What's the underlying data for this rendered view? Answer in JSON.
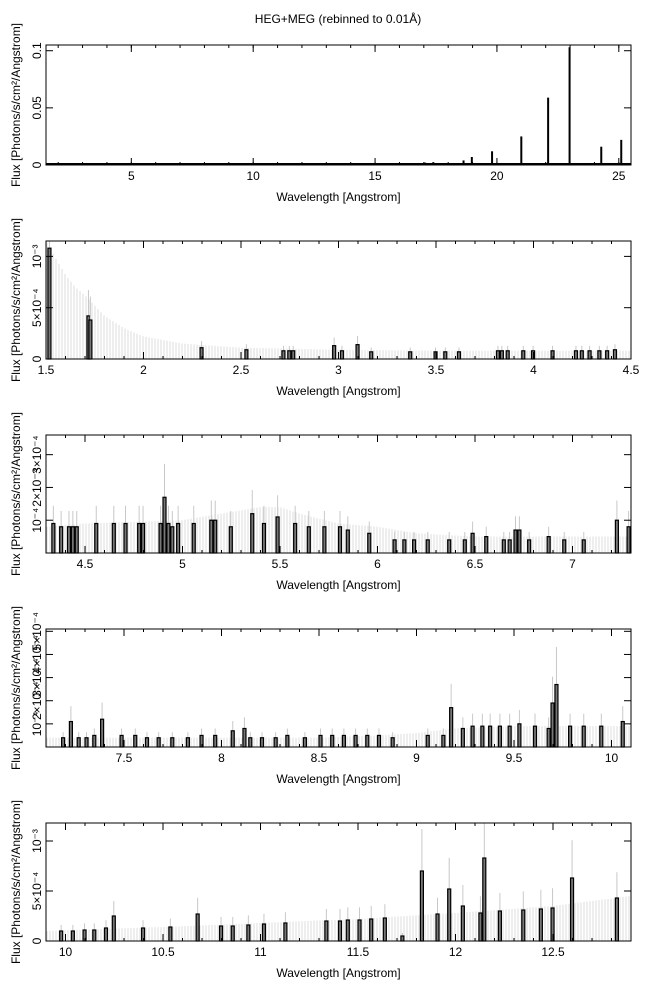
{
  "figure": {
    "title": "HEG+MEG (rebinned to 0.01Å)"
  },
  "colors": {
    "frame": "#000000",
    "data_line": "#000000",
    "model_fill": "#dcdcdc",
    "data_fill": "#777777"
  },
  "chart_data": [
    {
      "type": "line",
      "xlabel": "Wavelength [Angstrom]",
      "ylabel": "Flux [Photons/s/cm²/Angstrom]",
      "xlim": [
        1.5,
        25.5
      ],
      "ylim": [
        0,
        0.105
      ],
      "xticks": [
        5,
        10,
        15,
        20,
        25
      ],
      "xtick_labels": [
        "5",
        "10",
        "15",
        "20",
        "25"
      ],
      "yticks": [
        0,
        0.05,
        0.1
      ],
      "ytick_labels": [
        "0",
        "0.05",
        "0.1"
      ],
      "lines": {
        "x": [
          12.13,
          15.01,
          15.26,
          16.01,
          16.78,
          17.05,
          17.39,
          18.63,
          18.97,
          19.8,
          21.0,
          22.1,
          22.98,
          24.28,
          25.1
        ],
        "y": [
          0.0006,
          0.0012,
          0.0009,
          0.001,
          0.0015,
          0.0021,
          0.0025,
          0.004,
          0.007,
          0.012,
          0.025,
          0.059,
          0.103,
          0.016,
          0.022
        ]
      },
      "model": {
        "x": [
          1.5,
          5,
          10,
          15,
          20,
          25.5
        ],
        "y": [
          0.0004,
          0.0005,
          0.0006,
          0.001,
          0.0015,
          0.002
        ]
      }
    },
    {
      "type": "line",
      "xlabel": "Wavelength [Angstrom]",
      "ylabel": "Flux [Photons/s/cm²/Angstrom]",
      "xlim": [
        1.5,
        4.5
      ],
      "ylim": [
        0,
        0.00115
      ],
      "xticks": [
        1.5,
        2,
        2.5,
        3,
        3.5,
        4,
        4.5
      ],
      "xtick_labels": [
        "1.5",
        "2",
        "2.5",
        "3",
        "3.5",
        "4",
        "4.5"
      ],
      "yticks": [
        0,
        0.0005,
        0.001
      ],
      "ytick_labels": [
        "0",
        "5×10⁻⁴",
        "10⁻³"
      ],
      "bars": {
        "x": [
          1.51,
          1.71,
          1.72,
          2.29,
          2.52,
          2.71,
          2.74,
          2.76,
          2.97,
          3.01,
          3.09,
          3.16,
          3.36,
          3.49,
          3.54,
          3.61,
          3.81,
          3.83,
          3.86,
          3.94,
          3.99,
          4.09,
          4.21,
          4.24,
          4.28,
          4.33,
          4.37,
          4.41
        ],
        "y": [
          0.00108,
          0.00042,
          0.00038,
          0.00011,
          9e-05,
          8e-05,
          8e-05,
          8e-05,
          0.00013,
          8e-05,
          0.00014,
          7e-05,
          7e-05,
          7e-05,
          7e-05,
          7e-05,
          8e-05,
          8e-05,
          8e-05,
          8e-05,
          8e-05,
          8e-05,
          8e-05,
          8e-05,
          8e-05,
          8e-05,
          8e-05,
          9e-05
        ]
      },
      "model": {
        "x": [
          1.5,
          1.55,
          1.6,
          1.65,
          1.7,
          1.8,
          1.9,
          2.0,
          2.2,
          2.5,
          3.0,
          3.5,
          4.0,
          4.5
        ],
        "y": [
          0.00115,
          0.00098,
          0.00082,
          0.0007,
          0.00062,
          0.00042,
          0.0003,
          0.00022,
          0.00015,
          0.00011,
          9e-05,
          8e-05,
          8e-05,
          8e-05
        ]
      }
    },
    {
      "type": "line",
      "xlabel": "Wavelength [Angstrom]",
      "ylabel": "Flux [Photons/s/cm²/Angstrom]",
      "xlim": [
        4.3,
        7.3
      ],
      "ylim": [
        0,
        0.00036
      ],
      "xticks": [
        4.5,
        5,
        5.5,
        6,
        6.5,
        7
      ],
      "xtick_labels": [
        "4.5",
        "5",
        "5.5",
        "6",
        "6.5",
        "7"
      ],
      "yticks": [
        0.0001,
        0.0002,
        0.0003
      ],
      "ytick_labels": [
        "10⁻⁴",
        "2×10⁻⁴",
        "3×10⁻⁴"
      ],
      "bars": {
        "x": [
          4.33,
          4.37,
          4.41,
          4.43,
          4.45,
          4.55,
          4.64,
          4.7,
          4.77,
          4.79,
          4.88,
          4.9,
          4.92,
          4.94,
          4.97,
          5.05,
          5.14,
          5.16,
          5.24,
          5.35,
          5.41,
          5.48,
          5.57,
          5.64,
          5.72,
          5.8,
          5.84,
          5.95,
          6.08,
          6.13,
          6.18,
          6.25,
          6.36,
          6.44,
          6.48,
          6.55,
          6.64,
          6.67,
          6.7,
          6.72,
          6.77,
          6.87,
          6.95,
          7.05,
          7.22,
          7.28
        ],
        "y": [
          9e-05,
          8e-05,
          8e-05,
          8e-05,
          8e-05,
          9e-05,
          9e-05,
          9e-05,
          9e-05,
          9e-05,
          9e-05,
          0.00017,
          9e-05,
          8e-05,
          9e-05,
          9e-05,
          0.0001,
          0.0001,
          8e-05,
          0.00012,
          9e-05,
          0.00011,
          9e-05,
          8e-05,
          8e-05,
          8e-05,
          7e-05,
          6e-05,
          4e-05,
          4e-05,
          4e-05,
          4e-05,
          4e-05,
          4e-05,
          6e-05,
          5e-05,
          4e-05,
          4e-05,
          7e-05,
          7e-05,
          4e-05,
          5e-05,
          4e-05,
          4e-05,
          0.0001,
          8e-05
        ]
      },
      "model": {
        "x": [
          4.3,
          4.5,
          5.0,
          5.2,
          5.4,
          5.5,
          5.6,
          5.8,
          6.0,
          6.2,
          6.5,
          7.0,
          7.3
        ],
        "y": [
          8e-05,
          9e-05,
          0.0001,
          0.00012,
          0.00014,
          0.00014,
          0.00012,
          9e-05,
          8e-05,
          6e-05,
          5e-05,
          5e-05,
          5e-05
        ]
      }
    },
    {
      "type": "line",
      "xlabel": "Wavelength [Angstrom]",
      "ylabel": "Flux [Photons/s/cm²/Angstrom]",
      "xlim": [
        7.1,
        10.1
      ],
      "ylim": [
        0,
        0.00051
      ],
      "xticks": [
        7.5,
        8,
        8.5,
        9,
        9.5,
        10
      ],
      "xtick_labels": [
        "7.5",
        "8",
        "8.5",
        "9",
        "9.5",
        "10"
      ],
      "yticks": [
        0.0001,
        0.0002,
        0.0003,
        0.0004,
        0.0005
      ],
      "ytick_labels": [
        "10⁻⁴",
        "2×10⁻⁴",
        "3×10⁻⁴",
        "4×10⁻⁴",
        "5×10⁻⁴"
      ],
      "bars": {
        "x": [
          7.18,
          7.22,
          7.26,
          7.3,
          7.34,
          7.38,
          7.48,
          7.55,
          7.61,
          7.67,
          7.74,
          7.82,
          7.89,
          7.96,
          8.05,
          8.11,
          8.14,
          8.2,
          8.27,
          8.33,
          8.42,
          8.5,
          8.56,
          8.62,
          8.68,
          8.74,
          8.8,
          8.87,
          9.05,
          9.13,
          9.17,
          9.23,
          9.28,
          9.33,
          9.37,
          9.42,
          9.47,
          9.52,
          9.6,
          9.67,
          9.69,
          9.71,
          9.78,
          9.85,
          9.94,
          10.05
        ],
        "y": [
          4e-05,
          0.00011,
          4e-05,
          4e-05,
          5e-05,
          0.00012,
          5e-05,
          5e-05,
          4e-05,
          4e-05,
          4e-05,
          4e-05,
          5e-05,
          5e-05,
          7e-05,
          8e-05,
          4e-05,
          4e-05,
          4e-05,
          5e-05,
          4e-05,
          5e-05,
          5e-05,
          5e-05,
          5e-05,
          5e-05,
          5e-05,
          4e-05,
          5e-05,
          5e-05,
          0.00017,
          8e-05,
          9e-05,
          9e-05,
          9e-05,
          9e-05,
          9e-05,
          0.0001,
          9e-05,
          8e-05,
          0.00019,
          0.00027,
          9e-05,
          9e-05,
          9e-05,
          0.00011
        ]
      },
      "model": {
        "x": [
          7.1,
          8.0,
          8.5,
          8.8,
          9.0,
          9.2,
          9.5,
          9.8,
          10.1
        ],
        "y": [
          4e-05,
          4e-05,
          4e-05,
          5e-05,
          6e-05,
          8e-05,
          9e-05,
          9e-05,
          9e-05
        ]
      }
    },
    {
      "type": "line",
      "xlabel": "Wavelength [Angstrom]",
      "ylabel": "Flux [Photons/s/cm²/Angstrom]",
      "xlim": [
        9.9,
        12.9
      ],
      "ylim": [
        0,
        0.00118
      ],
      "xticks": [
        10,
        10.5,
        11,
        11.5,
        12,
        12.5
      ],
      "xtick_labels": [
        "10",
        "10.5",
        "11",
        "11.5",
        "12",
        "12.5"
      ],
      "yticks": [
        0,
        0.0005,
        0.001
      ],
      "ytick_labels": [
        "0",
        "5×10⁻⁴",
        "10⁻³"
      ],
      "bars": {
        "x": [
          9.97,
          10.03,
          10.09,
          10.14,
          10.2,
          10.24,
          10.39,
          10.53,
          10.67,
          10.79,
          10.85,
          10.93,
          11.01,
          11.12,
          11.33,
          11.4,
          11.44,
          11.5,
          11.56,
          11.63,
          11.72,
          11.82,
          11.9,
          11.96,
          12.03,
          12.12,
          12.14,
          12.22,
          12.34,
          12.43,
          12.49,
          12.59,
          12.82
        ],
        "y": [
          0.0001,
          0.0001,
          0.00011,
          0.00011,
          0.00013,
          0.00025,
          0.00013,
          0.00014,
          0.00027,
          0.00015,
          0.00015,
          0.00016,
          0.00017,
          0.00018,
          0.0002,
          0.0002,
          0.00021,
          0.00021,
          0.00022,
          0.00023,
          5e-05,
          0.0007,
          0.00027,
          0.00052,
          0.00035,
          0.00028,
          0.00083,
          0.0003,
          0.00031,
          0.00032,
          0.00033,
          0.00063,
          0.00043
        ]
      },
      "model": {
        "x": [
          9.9,
          10.5,
          11.0,
          11.5,
          12.0,
          12.5,
          12.9
        ],
        "y": [
          0.0001,
          0.00014,
          0.00018,
          0.00022,
          0.00028,
          0.00035,
          0.00045
        ]
      }
    }
  ]
}
